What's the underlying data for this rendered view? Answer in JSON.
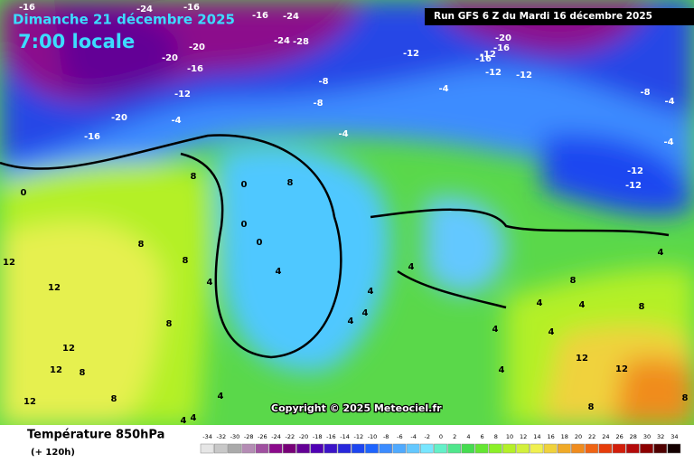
{
  "header": {
    "date": "Dimanche 21 décembre 2025",
    "time": "7:00 locale",
    "run": "Run GFS 6 Z du Mardi 16 décembre 2025"
  },
  "copyright": "Copyright © 2025 Meteociel.fr",
  "footer": {
    "title": "Température 850hPa",
    "lead": "(+ 120h)"
  },
  "contour_labels": [
    "-16",
    "-24",
    "-16",
    "-16",
    "-24",
    "-20",
    "-28",
    "-24",
    "-20",
    "-16",
    "-20",
    "-16",
    "-12",
    "-20",
    "-12",
    "-16",
    "-16",
    "-12",
    "-12",
    "-8",
    "-12",
    "-8",
    "-4",
    "-4",
    "-4",
    "-8",
    "-4",
    "-4",
    "-12",
    "-12",
    "0",
    "8",
    "0",
    "8",
    "8",
    "0",
    "12",
    "8",
    "4",
    "4",
    "0",
    "4",
    "12",
    "8",
    "12",
    "4",
    "8",
    "4",
    "4",
    "4",
    "8",
    "4",
    "4",
    "4",
    "8",
    "4",
    "12",
    "12",
    "8",
    "4",
    "4",
    "12",
    "4",
    "12",
    "8",
    "4",
    "8"
  ],
  "legend": {
    "values": [
      -34,
      -32,
      -30,
      -28,
      -26,
      -24,
      -22,
      -20,
      -18,
      -16,
      -14,
      -12,
      -10,
      -8,
      -6,
      -4,
      -2,
      0,
      2,
      4,
      6,
      8,
      10,
      12,
      14,
      16,
      18,
      20,
      22,
      24,
      26,
      28,
      30,
      32,
      34
    ],
    "colors": [
      "#e6e6e6",
      "#c8c8c8",
      "#aaaaaa",
      "#b48cb4",
      "#a050a0",
      "#8c0a8c",
      "#780078",
      "#640096",
      "#5000b4",
      "#3c14c8",
      "#2828dc",
      "#1e46f0",
      "#1e64ff",
      "#3c8cff",
      "#50aaff",
      "#64c8ff",
      "#78e6ff",
      "#64f0c8",
      "#50e68c",
      "#46dc50",
      "#64e632",
      "#8cf028",
      "#b4f028",
      "#d2f03c",
      "#f0f050",
      "#f0d23c",
      "#f0aa28",
      "#f08c1e",
      "#f06414",
      "#e63c0a",
      "#d21e0a",
      "#b40a0a",
      "#8c0000",
      "#500000",
      "#140000"
    ]
  }
}
